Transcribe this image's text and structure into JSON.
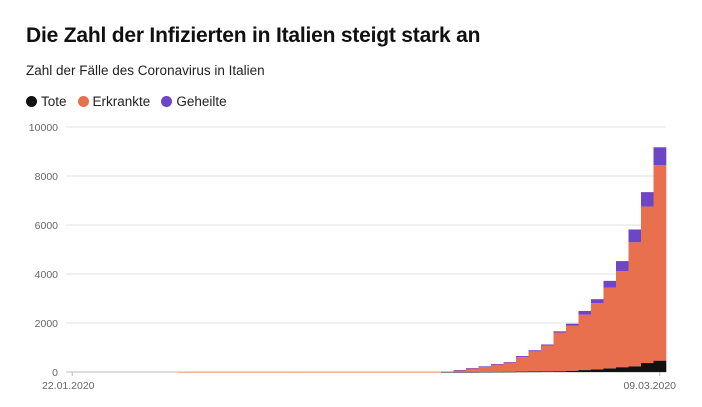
{
  "header": {
    "title": "Die Zahl der Infizierten in Italien steigt stark an",
    "subtitle": "Zahl der Fälle des Coronavirus in Italien"
  },
  "legend": [
    {
      "label": "Tote",
      "color": "#111111"
    },
    {
      "label": "Erkrankte",
      "color": "#e8704f"
    },
    {
      "label": "Geheilte",
      "color": "#6e45c4"
    }
  ],
  "chart_data": {
    "type": "area",
    "stacked": true,
    "step": true,
    "x_start": "22.01.2020",
    "x_end": "09.03.2020",
    "x_tick_labels": [
      "22.01.2020",
      "09.03.2020"
    ],
    "ylim": [
      0,
      10000
    ],
    "y_ticks": [
      0,
      2000,
      4000,
      6000,
      8000,
      10000
    ],
    "grid": true,
    "legend_position": "top-left",
    "series": [
      {
        "name": "Tote",
        "color": "#111111",
        "values": [
          0,
          0,
          0,
          0,
          0,
          0,
          0,
          0,
          0,
          0,
          0,
          0,
          0,
          0,
          0,
          0,
          0,
          0,
          0,
          0,
          0,
          0,
          0,
          0,
          0,
          0,
          0,
          0,
          0,
          0,
          1,
          2,
          3,
          7,
          10,
          12,
          17,
          21,
          29,
          34,
          52,
          79,
          107,
          148,
          197,
          233,
          366,
          463
        ]
      },
      {
        "name": "Erkrankte",
        "color": "#e8704f",
        "values": [
          0,
          0,
          0,
          0,
          0,
          0,
          0,
          0,
          0,
          3,
          3,
          3,
          3,
          3,
          3,
          3,
          3,
          3,
          3,
          3,
          3,
          3,
          3,
          3,
          3,
          3,
          3,
          3,
          3,
          3,
          19,
          74,
          150,
          221,
          311,
          385,
          588,
          821,
          1049,
          1577,
          1835,
          2263,
          2706,
          3296,
          3916,
          5061,
          6387,
          7985
        ]
      },
      {
        "name": "Geheilte",
        "color": "#6e45c4",
        "values": [
          0,
          0,
          0,
          0,
          0,
          0,
          0,
          0,
          0,
          0,
          0,
          0,
          0,
          0,
          0,
          0,
          0,
          0,
          0,
          0,
          0,
          0,
          0,
          0,
          0,
          0,
          0,
          0,
          0,
          0,
          0,
          1,
          1,
          1,
          1,
          3,
          45,
          46,
          46,
          50,
          83,
          149,
          160,
          276,
          414,
          523,
          589,
          724
        ]
      }
    ]
  }
}
